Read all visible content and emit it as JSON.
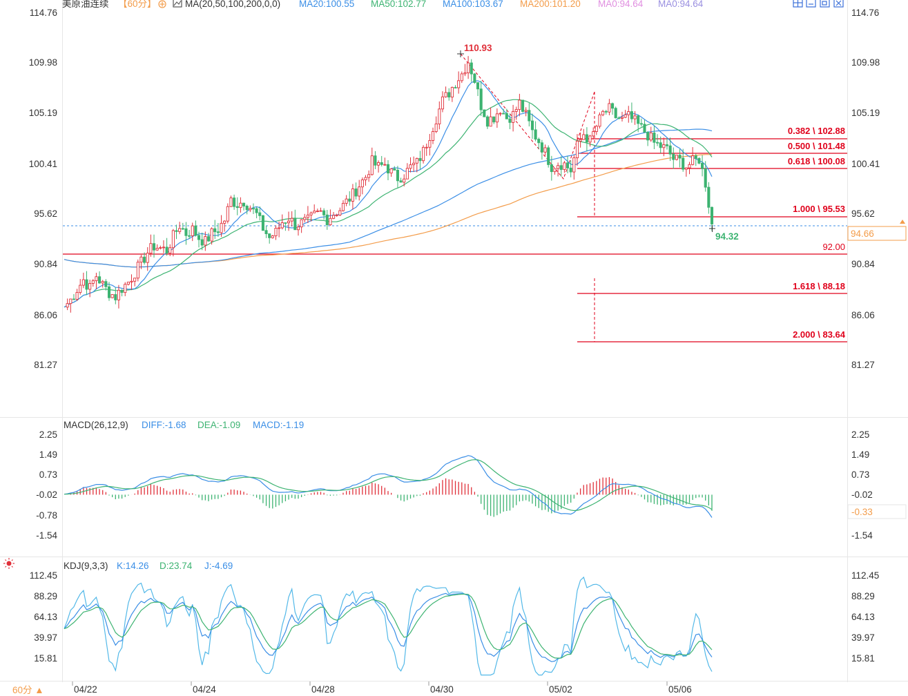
{
  "header": {
    "symbol": "美原油连续",
    "period_tag": "【60分】",
    "add_icon": "circle-plus-icon",
    "ma_icon": "indicator-icon",
    "ma_label": "MA(20,50,100,200,0,0)",
    "ma_values": [
      {
        "text": "MA20:100.55",
        "color": "#3a8ee6"
      },
      {
        "text": "MA50:102.77",
        "color": "#3cb371"
      },
      {
        "text": "MA100:103.67",
        "color": "#3a8ee6"
      },
      {
        "text": "MA200:101.20",
        "color": "#f39c4a"
      },
      {
        "text": "MA0:94.64",
        "color": "#e08fe0"
      },
      {
        "text": "MA0:94.64",
        "color": "#9a8fe0"
      }
    ],
    "toolbar_icons": [
      "layout-grid-icon",
      "panel-window-icon",
      "restore-window-icon",
      "close-window-icon"
    ]
  },
  "colors": {
    "up": "#e0303a",
    "down": "#3cb371",
    "ma20": "#3a8ee6",
    "ma50": "#3cb371",
    "ma100": "#3a8ee6",
    "ma200": "#f39c4a",
    "fib": "#e0001b",
    "last": "#3a8ee6",
    "axis_tag": "#f39c4a"
  },
  "price_axis": {
    "ticks": [
      "114.76",
      "109.98",
      "105.19",
      "100.41",
      "95.62",
      "90.84",
      "86.06",
      "81.27"
    ]
  },
  "annotations": {
    "high": "110.93",
    "low": "94.32",
    "support": "92.00",
    "last_price_tag": "94.66"
  },
  "fibonacci": [
    {
      "label": "0.382 \\ 102.88"
    },
    {
      "label": "0.500 \\ 101.48"
    },
    {
      "label": "0.618 \\ 100.08"
    },
    {
      "label": "1.000 \\ 95.53"
    },
    {
      "label": "1.618 \\ 88.18"
    },
    {
      "label": "2.000 \\ 83.64"
    }
  ],
  "macd": {
    "title": "MACD(26,12,9)",
    "diff": "DIFF:-1.68",
    "dea": "DEA:-1.09",
    "macd": "MACD:-1.19",
    "ticks": [
      "2.25",
      "1.49",
      "0.73",
      "-0.02",
      "-0.78",
      "-1.54"
    ],
    "current_tag": "-0.33"
  },
  "kdj": {
    "icon": "settings-sun-icon",
    "title": "KDJ(9,3,3)",
    "k": "K:14.26",
    "d": "D:23.74",
    "j": "J:-4.69",
    "ticks": [
      "112.45",
      "88.29",
      "64.13",
      "39.97",
      "15.81"
    ]
  },
  "x_axis": {
    "period_button": "60分 ▲",
    "dates": [
      "04/22",
      "04/24",
      "04/28",
      "04/30",
      "05/02",
      "05/06"
    ]
  },
  "chart_data": {
    "type": "candlestick",
    "x": [
      "04/22",
      "04/24",
      "04/28",
      "04/30",
      "05/02",
      "05/06"
    ],
    "price_range": [
      81.27,
      114.76
    ],
    "swing_high": 110.93,
    "swing_low_last": 94.32,
    "last": 94.66,
    "moving_averages": {
      "MA20": 100.55,
      "MA50": 102.77,
      "MA100": 103.67,
      "MA200": 101.2
    },
    "fib_levels": [
      {
        "ratio": 0.382,
        "price": 102.88
      },
      {
        "ratio": 0.5,
        "price": 101.48
      },
      {
        "ratio": 0.618,
        "price": 100.08
      },
      {
        "ratio": 1.0,
        "price": 95.53
      },
      {
        "ratio": 1.618,
        "price": 88.18
      },
      {
        "ratio": 2.0,
        "price": 83.64
      }
    ],
    "support_line": 92.0,
    "close_path": [
      [
        0,
        86.8
      ],
      [
        2,
        87.5
      ],
      [
        4,
        88.5
      ],
      [
        6,
        89.4
      ],
      [
        8,
        88.6
      ],
      [
        10,
        89.8
      ],
      [
        12,
        88.9
      ],
      [
        14,
        88.2
      ],
      [
        16,
        87.8
      ],
      [
        18,
        88.6
      ],
      [
        20,
        89.2
      ],
      [
        22,
        90.1
      ],
      [
        24,
        91.0
      ],
      [
        26,
        92.0
      ],
      [
        28,
        92.6
      ],
      [
        30,
        92.4
      ],
      [
        32,
        92.2
      ],
      [
        34,
        93.5
      ],
      [
        36,
        94.6
      ],
      [
        38,
        93.8
      ],
      [
        40,
        94.2
      ],
      [
        42,
        93.4
      ],
      [
        44,
        93.0
      ],
      [
        46,
        93.8
      ],
      [
        48,
        94.2
      ],
      [
        50,
        95.1
      ],
      [
        52,
        97.0
      ],
      [
        54,
        96.6
      ],
      [
        56,
        96.9
      ],
      [
        58,
        96.3
      ],
      [
        60,
        95.6
      ],
      [
        62,
        94.3
      ],
      [
        64,
        93.4
      ],
      [
        66,
        93.9
      ],
      [
        68,
        94.9
      ],
      [
        70,
        95.3
      ],
      [
        72,
        94.6
      ],
      [
        74,
        94.8
      ],
      [
        76,
        95.0
      ],
      [
        78,
        95.5
      ],
      [
        80,
        95.8
      ],
      [
        82,
        95.2
      ],
      [
        84,
        95.7
      ],
      [
        86,
        96.1
      ],
      [
        88,
        96.8
      ],
      [
        90,
        97.5
      ],
      [
        92,
        98.4
      ],
      [
        94,
        99.2
      ],
      [
        96,
        100.6
      ],
      [
        98,
        100.1
      ],
      [
        100,
        100.4
      ],
      [
        102,
        99.6
      ],
      [
        104,
        99.1
      ],
      [
        106,
        99.4
      ],
      [
        108,
        100.1
      ],
      [
        110,
        100.5
      ],
      [
        112,
        101.6
      ],
      [
        114,
        103.2
      ],
      [
        116,
        104.8
      ],
      [
        118,
        106.4
      ],
      [
        120,
        107.2
      ],
      [
        122,
        108.2
      ],
      [
        124,
        109.0
      ],
      [
        126,
        110.2
      ],
      [
        128,
        108.4
      ],
      [
        130,
        106.0
      ],
      [
        132,
        104.6
      ],
      [
        134,
        104.9
      ],
      [
        136,
        105.7
      ],
      [
        138,
        104.8
      ],
      [
        140,
        105.1
      ],
      [
        142,
        106.2
      ],
      [
        144,
        105.0
      ],
      [
        146,
        103.5
      ],
      [
        148,
        102.6
      ],
      [
        150,
        101.5
      ],
      [
        152,
        100.2
      ],
      [
        154,
        100.5
      ],
      [
        156,
        100.4
      ],
      [
        158,
        99.8
      ],
      [
        160,
        102.1
      ],
      [
        162,
        103.3
      ],
      [
        164,
        102.6
      ],
      [
        166,
        104.0
      ],
      [
        168,
        105.2
      ],
      [
        170,
        105.6
      ],
      [
        172,
        104.9
      ],
      [
        174,
        104.6
      ],
      [
        176,
        104.9
      ],
      [
        178,
        104.4
      ],
      [
        180,
        103.8
      ],
      [
        182,
        103.2
      ],
      [
        184,
        102.4
      ],
      [
        186,
        102.1
      ],
      [
        188,
        101.8
      ],
      [
        190,
        100.9
      ],
      [
        192,
        100.7
      ],
      [
        194,
        100.2
      ],
      [
        196,
        100.6
      ],
      [
        198,
        100.9
      ],
      [
        200,
        98.6
      ],
      [
        202,
        94.7
      ]
    ]
  }
}
